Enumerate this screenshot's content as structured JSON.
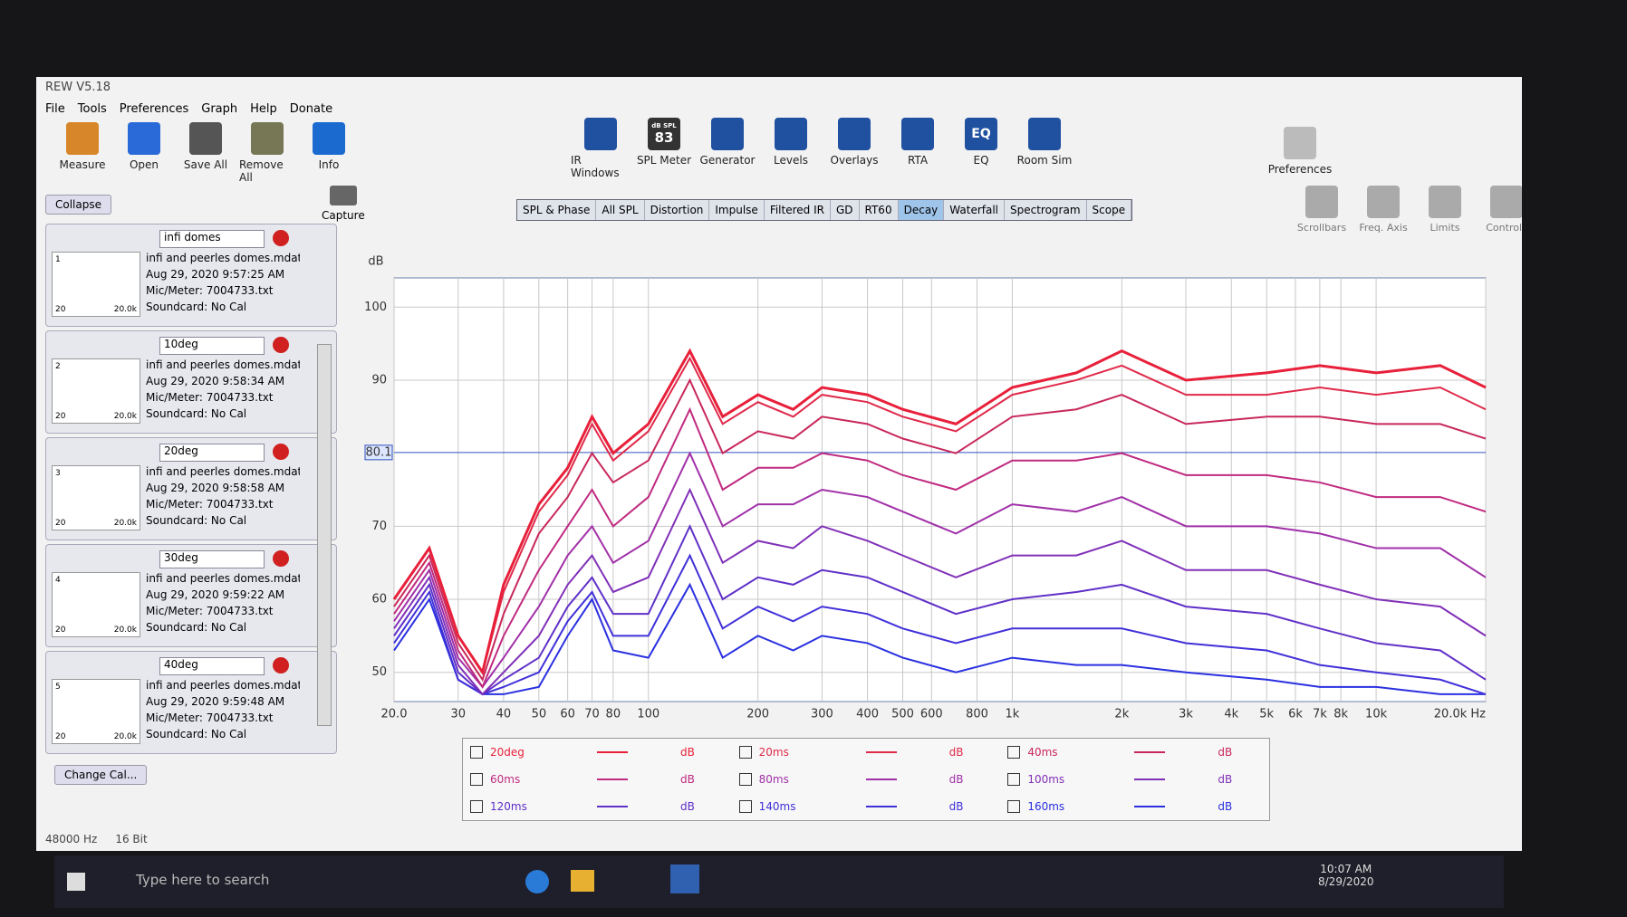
{
  "window_title": "REW V5.18",
  "menu": [
    "File",
    "Tools",
    "Preferences",
    "Graph",
    "Help",
    "Donate"
  ],
  "toolbar_left": [
    "Measure",
    "Open",
    "Save All",
    "Remove All",
    "Info"
  ],
  "toolbar_center": [
    "IR Windows",
    "SPL Meter",
    "Generator",
    "Levels",
    "Overlays",
    "RTA",
    "EQ",
    "Room Sim"
  ],
  "spl_icon": {
    "unit": "dB SPL",
    "reading": "83"
  },
  "eq_icon": "EQ",
  "preferences": "Preferences",
  "collapse": "Collapse",
  "thumb_axis": [
    "20",
    "20.0k"
  ],
  "measurements": [
    {
      "index": "1",
      "name": "infi domes",
      "description": "infi and peerles domes.mdat",
      "date": "Aug 29, 2020 9:57:25 AM",
      "mic": "Mic/Meter: 7004733.txt",
      "soundcard": "Soundcard: No Cal"
    },
    {
      "index": "2",
      "name": "10deg",
      "description": "infi and peerles domes.mdat",
      "date": "Aug 29, 2020 9:58:34 AM",
      "mic": "Mic/Meter: 7004733.txt",
      "soundcard": "Soundcard: No Cal"
    },
    {
      "index": "3",
      "name": "20deg",
      "description": "infi and peerles domes.mdat",
      "date": "Aug 29, 2020 9:58:58 AM",
      "mic": "Mic/Meter: 7004733.txt",
      "soundcard": "Soundcard: No Cal"
    },
    {
      "index": "4",
      "name": "30deg",
      "description": "infi and peerles domes.mdat",
      "date": "Aug 29, 2020 9:59:22 AM",
      "mic": "Mic/Meter: 7004733.txt",
      "soundcard": "Soundcard: No Cal"
    },
    {
      "index": "5",
      "name": "40deg",
      "description": "infi and peerles domes.mdat",
      "date": "Aug 29, 2020 9:59:48 AM",
      "mic": "Mic/Meter: 7004733.txt",
      "soundcard": "Soundcard: No Cal"
    }
  ],
  "change_cal": "Change Cal...",
  "capture": "Capture",
  "graph_tabs": [
    "SPL & Phase",
    "All SPL",
    "Distortion",
    "Impulse",
    "Filtered IR",
    "GD",
    "RT60",
    "Decay",
    "Waterfall",
    "Spectrogram",
    "Scope"
  ],
  "active_tab": 7,
  "graph_controls": [
    "Scrollbars",
    "Freq. Axis",
    "Limits",
    "Controls"
  ],
  "legend_unit": "dB",
  "status": [
    "48000 Hz",
    "16 Bit"
  ],
  "taskbar": {
    "search": "Type here to search",
    "time": "10:07 AM",
    "date": "8/29/2020"
  },
  "chart_data": {
    "type": "line",
    "ylabel": "dB",
    "log_x": true,
    "grid": true,
    "xlim": [
      20,
      20000
    ],
    "ylim": [
      46,
      104
    ],
    "xticks": [
      {
        "value": 20,
        "label": "20.0"
      },
      30,
      40,
      50,
      60,
      70,
      80,
      100,
      200,
      300,
      400,
      500,
      600,
      800,
      {
        "value": 1000,
        "label": "1k"
      },
      {
        "value": 2000,
        "label": "2k"
      },
      {
        "value": 3000,
        "label": "3k"
      },
      {
        "value": 4000,
        "label": "4k"
      },
      {
        "value": 5000,
        "label": "5k"
      },
      {
        "value": 6000,
        "label": "6k"
      },
      {
        "value": 7000,
        "label": "7k"
      },
      {
        "value": 8000,
        "label": "8k"
      },
      {
        "value": 10000,
        "label": "10k"
      },
      {
        "value": 20000,
        "label": "20.0k Hz"
      }
    ],
    "yticks": [
      50,
      60,
      70,
      90,
      100
    ],
    "cursor": 80.1,
    "x": [
      20,
      25,
      30,
      35,
      40,
      50,
      60,
      70,
      80,
      100,
      130,
      160,
      200,
      250,
      300,
      400,
      500,
      700,
      1000,
      1500,
      2000,
      3000,
      5000,
      7000,
      10000,
      15000,
      20000
    ],
    "series": [
      {
        "name": "20deg",
        "color": "#e8203a",
        "values": [
          60,
          67,
          55,
          50,
          62,
          73,
          78,
          85,
          80,
          84,
          94,
          85,
          88,
          86,
          89,
          88,
          86,
          84,
          89,
          91,
          94,
          90,
          91,
          92,
          91,
          92,
          89
        ]
      },
      {
        "name": "20ms",
        "color": "#e02a4a",
        "values": [
          60,
          67,
          55,
          50,
          61,
          72,
          77,
          84,
          79,
          83,
          93,
          84,
          87,
          85,
          88,
          87,
          85,
          83,
          88,
          90,
          92,
          88,
          88,
          89,
          88,
          89,
          86
        ]
      },
      {
        "name": "40ms",
        "color": "#c8285a",
        "values": [
          59,
          66,
          54,
          49,
          58,
          69,
          74,
          80,
          76,
          79,
          90,
          80,
          83,
          82,
          85,
          84,
          82,
          80,
          85,
          86,
          88,
          84,
          85,
          85,
          84,
          84,
          82
        ]
      },
      {
        "name": "60ms",
        "color": "#c02a80",
        "values": [
          58,
          65,
          53,
          48,
          55,
          64,
          70,
          75,
          70,
          74,
          86,
          75,
          78,
          78,
          80,
          79,
          77,
          75,
          79,
          79,
          80,
          77,
          77,
          76,
          74,
          74,
          72
        ]
      },
      {
        "name": "80ms",
        "color": "#a030a8",
        "values": [
          57,
          64,
          52,
          48,
          52,
          59,
          66,
          70,
          65,
          68,
          80,
          70,
          73,
          73,
          75,
          74,
          72,
          69,
          73,
          72,
          74,
          70,
          70,
          69,
          67,
          67,
          63
        ]
      },
      {
        "name": "100ms",
        "color": "#8030b8",
        "values": [
          56,
          63,
          51,
          47,
          50,
          55,
          62,
          66,
          61,
          63,
          75,
          65,
          68,
          67,
          70,
          68,
          66,
          63,
          66,
          66,
          68,
          64,
          64,
          62,
          60,
          59,
          55
        ]
      },
      {
        "name": "120ms",
        "color": "#6030c8",
        "values": [
          55,
          62,
          50,
          47,
          49,
          52,
          59,
          63,
          58,
          58,
          70,
          60,
          63,
          62,
          64,
          63,
          61,
          58,
          60,
          61,
          62,
          59,
          58,
          56,
          54,
          53,
          49
        ]
      },
      {
        "name": "140ms",
        "color": "#4030d8",
        "values": [
          54,
          61,
          49,
          47,
          48,
          50,
          57,
          61,
          55,
          55,
          66,
          56,
          59,
          57,
          59,
          58,
          56,
          54,
          56,
          56,
          56,
          54,
          53,
          51,
          50,
          49,
          47
        ]
      },
      {
        "name": "160ms",
        "color": "#2a30e0",
        "values": [
          53,
          60,
          49,
          47,
          47,
          48,
          55,
          60,
          53,
          52,
          62,
          52,
          55,
          53,
          55,
          54,
          52,
          50,
          52,
          51,
          51,
          50,
          49,
          48,
          48,
          47,
          47
        ]
      }
    ]
  }
}
